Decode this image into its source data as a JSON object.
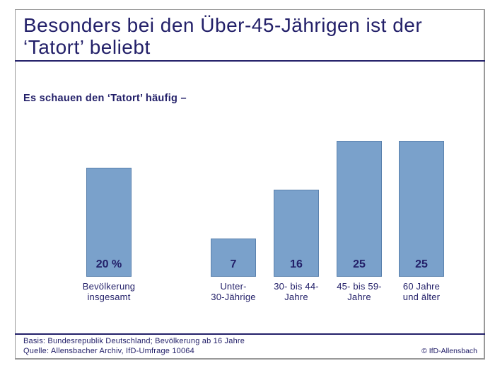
{
  "header": {
    "title": "Besonders bei den Über-45-Jährigen ist der ‘Tatort’ beliebt",
    "subtitle": "Es schauen den ‘Tatort’ häufig –"
  },
  "chart_data": {
    "type": "bar",
    "title": "Besonders bei den Über-45-Jährigen ist der ‘Tatort’ beliebt",
    "subtitle": "Es schauen den ‘Tatort’ häufig –",
    "categories": [
      "Bevölkerung insgesamt",
      "Unter-30-Jährige",
      "30- bis 44-Jahre",
      "45- bis 59-Jahre",
      "60 Jahre und älter"
    ],
    "values": [
      20,
      7,
      16,
      25,
      25
    ],
    "value_labels": [
      "20 %",
      "7",
      "16",
      "25",
      "25"
    ],
    "category_label_lines": [
      [
        "Bevölkerung",
        "insgesamt"
      ],
      [
        "Unter-",
        "30-Jährige"
      ],
      [
        "30- bis 44-",
        "Jahre"
      ],
      [
        "45- bis 59-",
        "Jahre"
      ],
      [
        "60 Jahre",
        "und älter"
      ]
    ],
    "unit": "%",
    "ylim": [
      0,
      25
    ],
    "grid": false,
    "legend": false,
    "value_label_position": "inside-bottom"
  },
  "footer": {
    "basis": "Basis: Bundesrepublik Deutschland; Bevölkerung ab 16 Jahre",
    "quelle": "Quelle: Allensbacher Archiv, IfD-Umfrage 10064",
    "copyright": "© IfD-Allensbach"
  },
  "colors": {
    "navy": "#232069",
    "bar_fill": "#7AA1CB",
    "bar_border": "#5A81AD",
    "frame_border": "#999999"
  }
}
